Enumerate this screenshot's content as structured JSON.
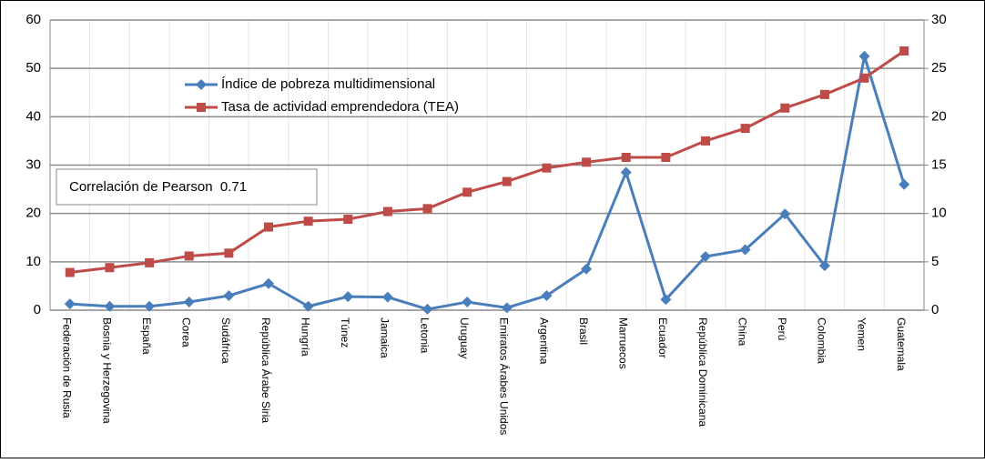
{
  "chart_data": {
    "type": "line",
    "categories": [
      "Federación de Rusia",
      "Bosnia y Herzegovina",
      "España",
      "Corea",
      "Sudáfrica",
      "República Árabe Siria",
      "Hungría",
      "Túnez",
      "Jamaica",
      "Letonia",
      "Uruguay",
      "Emiratos Árabes Unidos",
      "Argentina",
      "Brasil",
      "Marruecos",
      "Ecuador",
      "República Dominicana",
      "China",
      "Perú",
      "Colombia",
      "Yemen",
      "Guatemala"
    ],
    "series": [
      {
        "name": "Índice de pobreza multidimensional",
        "color": "#4a7ebb",
        "marker": "diamond",
        "values": [
          1.3,
          0.8,
          0.8,
          1.7,
          3.0,
          5.5,
          0.8,
          2.8,
          2.7,
          0.2,
          1.7,
          0.5,
          3.0,
          8.5,
          28.5,
          2.2,
          11.1,
          12.5,
          19.9,
          9.2,
          52.5,
          26.0
        ]
      },
      {
        "name": "Tasa de actividad emprendedora (TEA)",
        "color": "#be4b48",
        "marker": "square",
        "axis": "y2",
        "values": [
          3.9,
          4.4,
          4.9,
          5.6,
          5.9,
          8.6,
          9.2,
          9.4,
          10.2,
          10.5,
          12.2,
          13.3,
          14.7,
          15.3,
          15.8,
          15.8,
          17.5,
          18.8,
          20.9,
          22.3,
          24.0,
          26.8
        ]
      }
    ],
    "ylim": [
      0,
      60
    ],
    "yticks": [
      0,
      10,
      20,
      30,
      40,
      50,
      60
    ],
    "y2lim": [
      0,
      30
    ],
    "y2ticks": [
      0,
      5,
      10,
      15,
      20,
      25,
      30
    ],
    "grid": true,
    "annotation": "Correlación de Pearson  0.71"
  }
}
